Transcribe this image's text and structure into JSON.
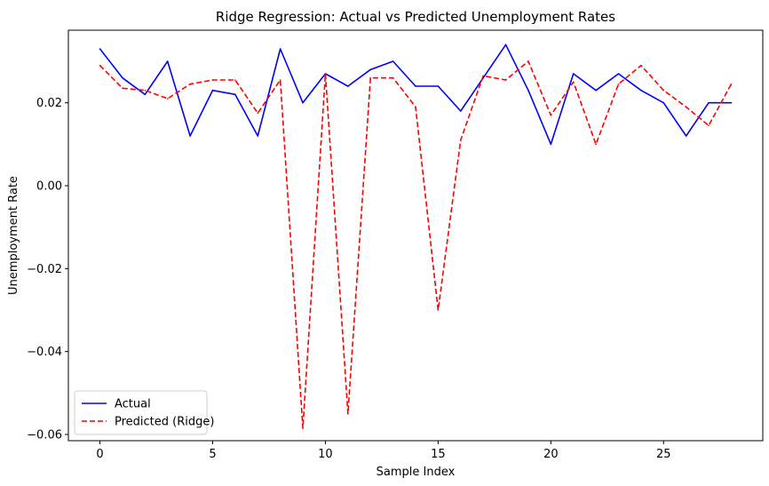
{
  "chart_data": {
    "type": "line",
    "title": "Ridge Regression: Actual vs Predicted Unemployment Rates",
    "xlabel": "Sample Index",
    "ylabel": "Unemployment Rate",
    "xlim": [
      -1.4,
      29.4
    ],
    "ylim": [
      -0.0615,
      0.0375
    ],
    "xticks": [
      0,
      5,
      10,
      15,
      20,
      25
    ],
    "xtick_labels": [
      "0",
      "5",
      "10",
      "15",
      "20",
      "25"
    ],
    "yticks": [
      -0.06,
      -0.04,
      -0.02,
      0.0,
      0.02
    ],
    "ytick_labels": [
      "−0.06",
      "−0.04",
      "−0.02",
      "0.00",
      "0.02"
    ],
    "grid": false,
    "legend_position": "lower-left",
    "x": [
      0,
      1,
      2,
      3,
      4,
      5,
      6,
      7,
      8,
      9,
      10,
      11,
      12,
      13,
      14,
      15,
      16,
      17,
      18,
      19,
      20,
      21,
      22,
      23,
      24,
      25,
      26,
      27,
      28
    ],
    "series": [
      {
        "name": "Actual",
        "color": "#0000ff",
        "style": "solid",
        "values": [
          0.033,
          0.026,
          0.022,
          0.03,
          0.012,
          0.023,
          0.022,
          0.012,
          0.033,
          0.02,
          0.027,
          0.024,
          0.028,
          0.03,
          0.024,
          0.024,
          0.018,
          0.026,
          0.034,
          0.023,
          0.01,
          0.027,
          0.023,
          0.027,
          0.023,
          0.02,
          0.012,
          0.02,
          0.02
        ]
      },
      {
        "name": "Predicted (Ridge)",
        "color": "#ff0000",
        "style": "dashed",
        "values": [
          0.029,
          0.0235,
          0.023,
          0.021,
          0.0245,
          0.0255,
          0.0255,
          0.0175,
          0.0255,
          -0.0585,
          0.027,
          -0.055,
          0.026,
          0.026,
          0.019,
          -0.03,
          0.011,
          0.0265,
          0.0255,
          0.03,
          0.017,
          0.025,
          0.01,
          0.0245,
          0.029,
          0.023,
          0.019,
          0.0145,
          0.0245
        ]
      }
    ]
  }
}
